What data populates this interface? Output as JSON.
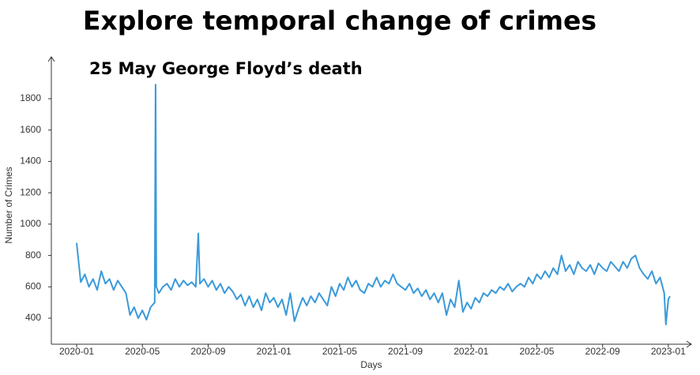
{
  "chart_data": {
    "type": "line",
    "title": "Explore temporal change of crimes",
    "annotation": "25 May George Floyd’s death",
    "x_label": "Days",
    "y_label": "Number of Crimes",
    "xlim": [
      -1.54,
      37.4
    ],
    "xticks": [
      {
        "value": 0,
        "label": "2020-01"
      },
      {
        "value": 4,
        "label": "2020-05"
      },
      {
        "value": 8,
        "label": "2020-09"
      },
      {
        "value": 12,
        "label": "2021-01"
      },
      {
        "value": 16,
        "label": "2021-05"
      },
      {
        "value": 20,
        "label": "2021-09"
      },
      {
        "value": 24,
        "label": "2022-01"
      },
      {
        "value": 28,
        "label": "2022-05"
      },
      {
        "value": 32,
        "label": "2022-09"
      },
      {
        "value": 36,
        "label": "2023-01"
      }
    ],
    "ylim": [
      234,
      2067
    ],
    "yticks": [
      400,
      600,
      800,
      1000,
      1200,
      1400,
      1600,
      1800
    ],
    "series": [
      {
        "name": "Number of Crimes",
        "color": "#3a9ad9",
        "x": [
          0,
          0.25,
          0.5,
          0.75,
          1,
          1.25,
          1.5,
          1.75,
          2,
          2.25,
          2.5,
          2.75,
          3,
          3.25,
          3.5,
          3.75,
          4,
          4.25,
          4.5,
          4.75,
          4.8,
          4.85,
          5,
          5.25,
          5.5,
          5.75,
          6,
          6.25,
          6.5,
          6.75,
          7,
          7.25,
          7.4,
          7.5,
          7.75,
          8,
          8.25,
          8.5,
          8.75,
          9,
          9.25,
          9.5,
          9.75,
          10,
          10.25,
          10.5,
          10.75,
          11,
          11.25,
          11.5,
          11.75,
          12,
          12.25,
          12.5,
          12.75,
          13,
          13.25,
          13.5,
          13.75,
          14,
          14.25,
          14.5,
          14.75,
          15,
          15.25,
          15.5,
          15.75,
          16,
          16.25,
          16.5,
          16.75,
          17,
          17.25,
          17.5,
          17.75,
          18,
          18.25,
          18.5,
          18.75,
          19,
          19.25,
          19.5,
          19.75,
          20,
          20.25,
          20.5,
          20.75,
          21,
          21.25,
          21.5,
          21.75,
          22,
          22.25,
          22.5,
          22.75,
          23,
          23.25,
          23.5,
          23.75,
          24,
          24.25,
          24.5,
          24.75,
          25,
          25.25,
          25.5,
          25.75,
          26,
          26.25,
          26.5,
          26.75,
          27,
          27.25,
          27.5,
          27.75,
          28,
          28.25,
          28.5,
          28.75,
          29,
          29.25,
          29.5,
          29.75,
          30,
          30.25,
          30.5,
          30.75,
          31,
          31.25,
          31.5,
          31.75,
          32,
          32.25,
          32.5,
          32.75,
          33,
          33.25,
          33.5,
          33.75,
          34,
          34.25,
          34.5,
          34.75,
          35,
          35.25,
          35.5,
          35.75,
          35.85,
          36,
          36.1
        ],
        "values": [
          880,
          630,
          680,
          600,
          650,
          580,
          700,
          620,
          650,
          580,
          640,
          600,
          560,
          420,
          470,
          400,
          450,
          390,
          470,
          500,
          1890,
          600,
          560,
          600,
          620,
          580,
          650,
          600,
          640,
          610,
          630,
          600,
          940,
          620,
          650,
          600,
          640,
          580,
          620,
          560,
          600,
          570,
          520,
          550,
          480,
          540,
          470,
          520,
          450,
          560,
          500,
          530,
          470,
          520,
          420,
          560,
          380,
          460,
          530,
          480,
          540,
          500,
          560,
          520,
          480,
          600,
          540,
          620,
          580,
          660,
          600,
          640,
          580,
          560,
          620,
          600,
          660,
          600,
          640,
          620,
          680,
          620,
          600,
          580,
          620,
          560,
          590,
          540,
          580,
          520,
          560,
          500,
          560,
          420,
          520,
          470,
          640,
          440,
          500,
          460,
          530,
          500,
          560,
          540,
          580,
          560,
          600,
          580,
          620,
          570,
          600,
          620,
          600,
          660,
          620,
          680,
          650,
          700,
          660,
          720,
          680,
          800,
          700,
          740,
          680,
          760,
          720,
          700,
          740,
          680,
          750,
          720,
          700,
          760,
          730,
          700,
          760,
          720,
          780,
          800,
          720,
          680,
          650,
          700,
          620,
          660,
          560,
          360,
          520,
          540
        ]
      }
    ]
  }
}
